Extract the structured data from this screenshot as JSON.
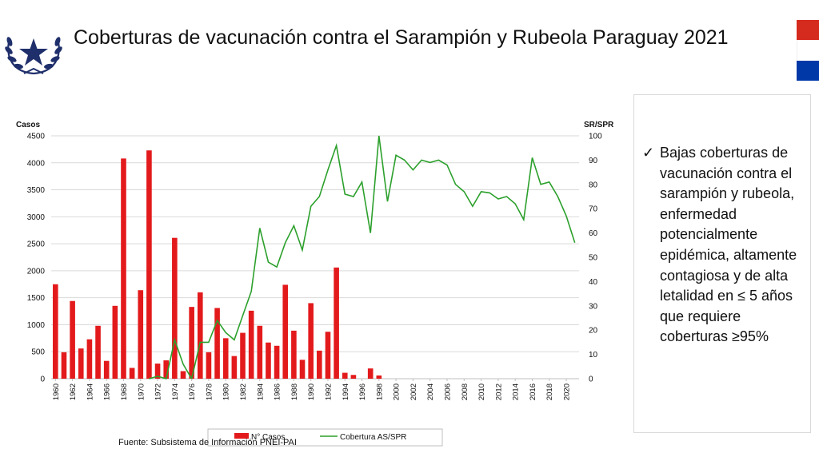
{
  "header": {
    "title": "Coberturas de vacunación contra el Sarampión y Rubeola Paraguay 2021"
  },
  "logo_icon": "paraguay-star-wreath-emblem-icon",
  "flag": {
    "colors": [
      "#d52b1e",
      "#ffffff",
      "#0038a8"
    ]
  },
  "side_panel": {
    "bullet": "✓",
    "text": "Bajas coberturas de vacunación contra el sarampión y rubeola, enfermedad potencialmente epidémica, altamente contagiosa y  de alta letalidad en ≤ 5 años que requiere coberturas  ≥95%"
  },
  "source": "Fuente: Subsistema de Información PNEI-PAI",
  "chart_data": {
    "type": "bar",
    "title": "",
    "ylabel": "Casos",
    "y2label": "SR/SPR",
    "ylim": [
      0,
      4500
    ],
    "y2lim": [
      0,
      100
    ],
    "yticks": [
      "0",
      "500",
      "1000",
      "1500",
      "2000",
      "2500",
      "3000",
      "3500",
      "4000",
      "4500"
    ],
    "y2ticks": [
      "0",
      "10",
      "20",
      "30",
      "40",
      "50",
      "60",
      "70",
      "80",
      "90",
      "100"
    ],
    "grid": true,
    "legend_position": "bottom",
    "colors": {
      "bars": "#e31a1c",
      "line": "#2ca02c"
    },
    "categories": [
      1960,
      1961,
      1962,
      1963,
      1964,
      1965,
      1966,
      1967,
      1968,
      1969,
      1970,
      1971,
      1972,
      1973,
      1974,
      1975,
      1976,
      1977,
      1978,
      1979,
      1980,
      1981,
      1982,
      1983,
      1984,
      1985,
      1986,
      1987,
      1988,
      1989,
      1990,
      1991,
      1992,
      1993,
      1994,
      1995,
      1996,
      1997,
      1998,
      1999,
      2000,
      2001,
      2002,
      2003,
      2004,
      2005,
      2006,
      2007,
      2008,
      2009,
      2010,
      2011,
      2012,
      2013,
      2014,
      2015,
      2016,
      2017,
      2018,
      2019,
      2020,
      2021
    ],
    "xtick_labels": [
      "1960",
      "1962",
      "1964",
      "1966",
      "1968",
      "1970",
      "1972",
      "1974",
      "1976",
      "1978",
      "1980",
      "1982",
      "1984",
      "1986",
      "1988",
      "1990",
      "1992",
      "1994",
      "1996",
      "1998",
      "2000",
      "2002",
      "2004",
      "2006",
      "2008",
      "2010",
      "2012",
      "2014",
      "2016",
      "2018",
      "2020"
    ],
    "series": [
      {
        "name": "N° Casos",
        "type": "bar",
        "axis": "left",
        "values": [
          1750,
          490,
          1440,
          560,
          730,
          980,
          330,
          1350,
          4080,
          200,
          1640,
          4230,
          280,
          340,
          2610,
          140,
          1330,
          1600,
          490,
          1310,
          750,
          420,
          850,
          1260,
          980,
          670,
          610,
          1740,
          890,
          350,
          1400,
          520,
          870,
          2060,
          110,
          70,
          0,
          190,
          60,
          0,
          0,
          0,
          0,
          0,
          0,
          0,
          0,
          0,
          0,
          0,
          0,
          0,
          0,
          0,
          0,
          0,
          0,
          0,
          0,
          0,
          0,
          0
        ]
      },
      {
        "name": "Cobertura AS/SPR",
        "type": "line",
        "axis": "right",
        "values": [
          null,
          null,
          null,
          null,
          null,
          null,
          null,
          null,
          null,
          null,
          null,
          0,
          1,
          0,
          16,
          6,
          0,
          15,
          15,
          24,
          19,
          16,
          26,
          36,
          62,
          48,
          46,
          56,
          63,
          53,
          71,
          75,
          86,
          96,
          76,
          75,
          81,
          60,
          100,
          73,
          92,
          90,
          86,
          90,
          89,
          90,
          88,
          80,
          77,
          71,
          77,
          76.5,
          74,
          75,
          72,
          65.5,
          91,
          80,
          81,
          75,
          67,
          56
        ]
      }
    ]
  }
}
